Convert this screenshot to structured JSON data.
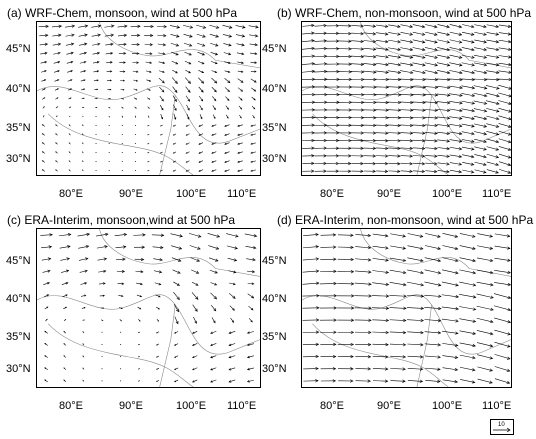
{
  "panels": [
    {
      "id": "a",
      "title": "(a) WRF-Chem, monsoon, wind at 500 hPa",
      "style": "wrf",
      "season": "monsoon"
    },
    {
      "id": "b",
      "title": "(b) WRF-Chem, non-monsoon, wind at 500 hPa",
      "style": "wrf",
      "season": "nonmonsoon"
    },
    {
      "id": "c",
      "title": "(c) ERA-Interim, monsoon,wind at 500 hPa",
      "style": "era",
      "season": "monsoon"
    },
    {
      "id": "d",
      "title": "(d) ERA-Interim, non-monsoon, wind at 500 hPa",
      "style": "era",
      "season": "nonmonsoon"
    }
  ],
  "axes": {
    "lat_labels": [
      "45°N",
      "40°N",
      "35°N",
      "30°N"
    ],
    "lon_labels": [
      "80°E",
      "90°E",
      "100°E",
      "110°E"
    ]
  },
  "reference_vector": {
    "value": "10"
  },
  "colors": {
    "vector": "#000000",
    "border": "#8a8a8a"
  }
}
